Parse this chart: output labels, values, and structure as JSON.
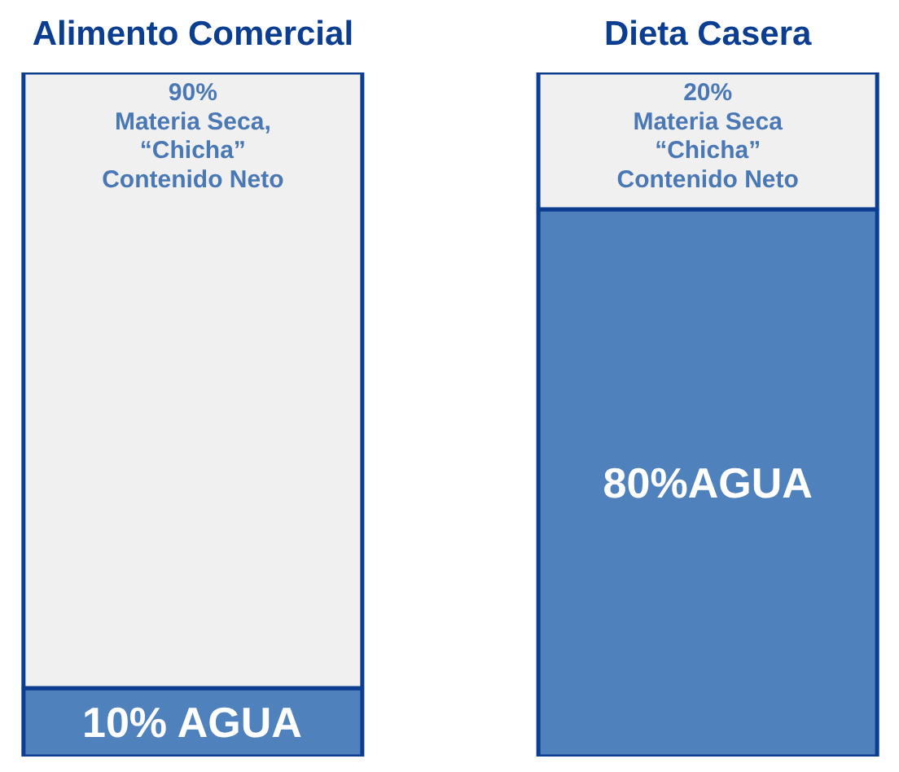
{
  "chart_data": {
    "type": "bar",
    "stacked": true,
    "categories": [
      "Alimento Comercial",
      "Dieta Casera"
    ],
    "series": [
      {
        "color": "#4f81bd",
        "values": [
          10,
          80
        ],
        "value_labels": [
          "10% AGUA",
          "80%AGUA"
        ]
      },
      {
        "color": "#f0f0f0",
        "values": [
          90,
          20
        ],
        "value_labels": [
          "90%\nMateria Seca,\n“Chicha”\nContenido Neto",
          "20%\nMateria Seca\n“Chicha”\nContenido Neto"
        ]
      }
    ],
    "ylim": [
      0,
      100
    ],
    "tick_labels": "x"
  }
}
